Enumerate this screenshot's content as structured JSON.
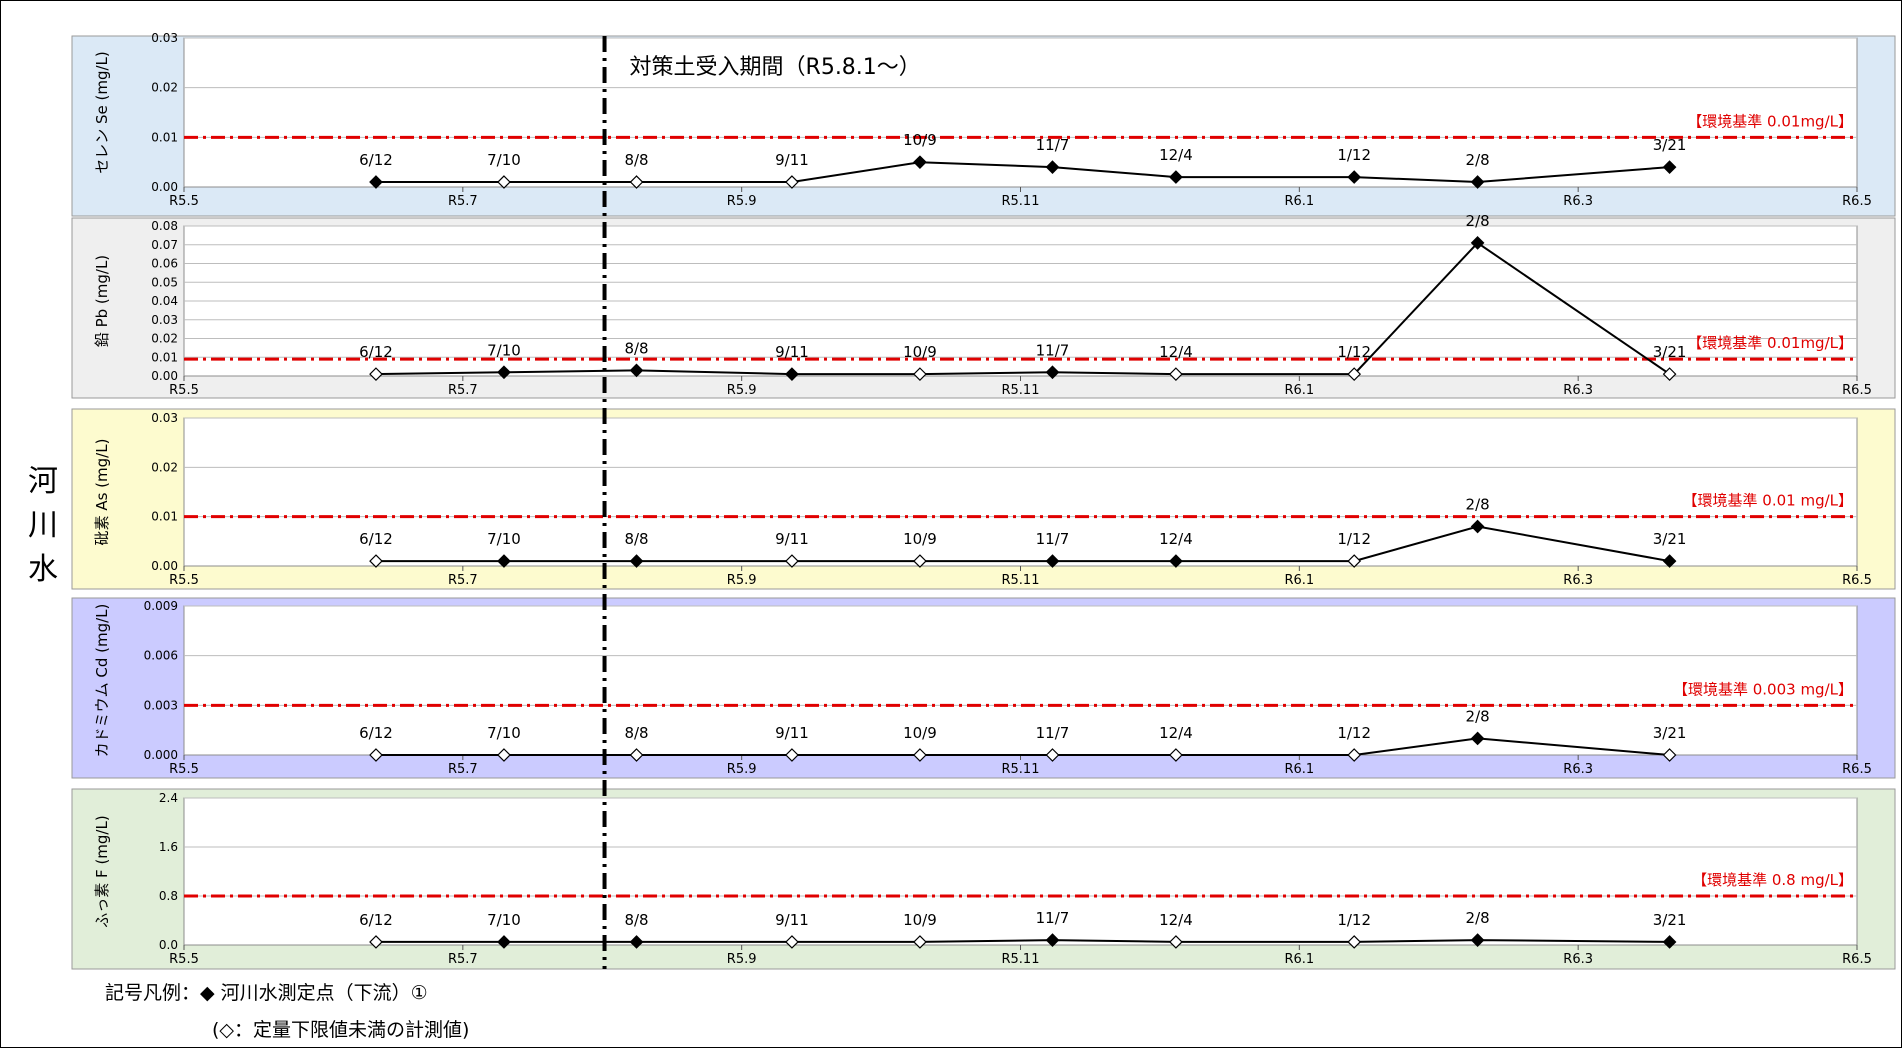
{
  "side_label": [
    "河",
    "川",
    "水"
  ],
  "period_label": "対策土受入期間（R5.8.1〜）",
  "legend": {
    "symbol": "◆",
    "text": "記号凡例：◆ 河川水測定点（下流）①",
    "note": "(◇：定量下限値未満の計測値)"
  },
  "colors": {
    "se_bg": "#dbe9f6",
    "pb_bg": "#efefef",
    "as_bg": "#fdfbcf",
    "cd_bg": "#cbcbff",
    "f_bg": "#e1eed9",
    "standard": "#e00000"
  },
  "chart_data": [
    {
      "type": "line",
      "name": "selenium",
      "ylabel": "セレン Se (mg/L)",
      "yticks": [
        "0.00",
        "0.01",
        "0.02",
        "0.03"
      ],
      "ylim": [
        0,
        0.03
      ],
      "xticks": [
        "R5.5",
        "R5.7",
        "R5.9",
        "R5.11",
        "R6.1",
        "R6.3",
        "R6.5"
      ],
      "standard": {
        "value": 0.01,
        "label": "【環境基準 0.01mg/L】"
      },
      "points": [
        {
          "date": "2023-06-12",
          "label": "6/12",
          "value": 0.001,
          "below_limit": false
        },
        {
          "date": "2023-07-10",
          "label": "7/10",
          "value": 0.001,
          "below_limit": true
        },
        {
          "date": "2023-08-08",
          "label": "8/8",
          "value": 0.001,
          "below_limit": true
        },
        {
          "date": "2023-09-11",
          "label": "9/11",
          "value": 0.001,
          "below_limit": true
        },
        {
          "date": "2023-10-09",
          "label": "10/9",
          "value": 0.005,
          "below_limit": false
        },
        {
          "date": "2023-11-07",
          "label": "11/7",
          "value": 0.004,
          "below_limit": false
        },
        {
          "date": "2023-12-04",
          "label": "12/4",
          "value": 0.002,
          "below_limit": false
        },
        {
          "date": "2024-01-12",
          "label": "1/12",
          "value": 0.002,
          "below_limit": false
        },
        {
          "date": "2024-02-08",
          "label": "2/8",
          "value": 0.001,
          "below_limit": false
        },
        {
          "date": "2024-03-21",
          "label": "3/21",
          "value": 0.004,
          "below_limit": false
        }
      ]
    },
    {
      "type": "line",
      "name": "lead",
      "ylabel": "鉛 Pb (mg/L)",
      "yticks": [
        "0.00",
        "0.01",
        "0.02",
        "0.03",
        "0.04",
        "0.05",
        "0.06",
        "0.07",
        "0.08"
      ],
      "ylim": [
        0,
        0.08
      ],
      "xticks": [
        "R5.5",
        "R5.7",
        "R5.9",
        "R5.11",
        "R6.1",
        "R6.3",
        "R6.5"
      ],
      "standard": {
        "value": 0.009,
        "label": "【環境基準 0.01mg/L】"
      },
      "points": [
        {
          "date": "2023-06-12",
          "label": "6/12",
          "value": 0.001,
          "below_limit": true
        },
        {
          "date": "2023-07-10",
          "label": "7/10",
          "value": 0.002,
          "below_limit": false
        },
        {
          "date": "2023-08-08",
          "label": "8/8",
          "value": 0.003,
          "below_limit": false
        },
        {
          "date": "2023-09-11",
          "label": "9/11",
          "value": 0.001,
          "below_limit": false
        },
        {
          "date": "2023-10-09",
          "label": "10/9",
          "value": 0.001,
          "below_limit": true
        },
        {
          "date": "2023-11-07",
          "label": "11/7",
          "value": 0.002,
          "below_limit": false
        },
        {
          "date": "2023-12-04",
          "label": "12/4",
          "value": 0.001,
          "below_limit": true
        },
        {
          "date": "2024-01-12",
          "label": "1/12",
          "value": 0.001,
          "below_limit": true
        },
        {
          "date": "2024-02-08",
          "label": "2/8",
          "value": 0.071,
          "below_limit": false
        },
        {
          "date": "2024-03-21",
          "label": "3/21",
          "value": 0.001,
          "below_limit": true
        }
      ]
    },
    {
      "type": "line",
      "name": "arsenic",
      "ylabel": "砒素 As (mg/L)",
      "yticks": [
        "0.00",
        "0.01",
        "0.02",
        "0.03"
      ],
      "ylim": [
        0,
        0.03
      ],
      "xticks": [
        "R5.5",
        "R5.7",
        "R5.9",
        "R5.11",
        "R6.1",
        "R6.3",
        "R6.5"
      ],
      "standard": {
        "value": 0.01,
        "label": "【環境基準 0.01 mg/L】"
      },
      "points": [
        {
          "date": "2023-06-12",
          "label": "6/12",
          "value": 0.001,
          "below_limit": true
        },
        {
          "date": "2023-07-10",
          "label": "7/10",
          "value": 0.001,
          "below_limit": false
        },
        {
          "date": "2023-08-08",
          "label": "8/8",
          "value": 0.001,
          "below_limit": false
        },
        {
          "date": "2023-09-11",
          "label": "9/11",
          "value": 0.001,
          "below_limit": true
        },
        {
          "date": "2023-10-09",
          "label": "10/9",
          "value": 0.001,
          "below_limit": true
        },
        {
          "date": "2023-11-07",
          "label": "11/7",
          "value": 0.001,
          "below_limit": false
        },
        {
          "date": "2023-12-04",
          "label": "12/4",
          "value": 0.001,
          "below_limit": false
        },
        {
          "date": "2024-01-12",
          "label": "1/12",
          "value": 0.001,
          "below_limit": true
        },
        {
          "date": "2024-02-08",
          "label": "2/8",
          "value": 0.008,
          "below_limit": false
        },
        {
          "date": "2024-03-21",
          "label": "3/21",
          "value": 0.001,
          "below_limit": false
        }
      ]
    },
    {
      "type": "line",
      "name": "cadmium",
      "ylabel": "カドミウム Cd (mg/L)",
      "yticks": [
        "0.000",
        "0.003",
        "0.006",
        "0.009"
      ],
      "ylim": [
        0,
        0.009
      ],
      "xticks": [
        "R5.5",
        "R5.7",
        "R5.9",
        "R5.11",
        "R6.1",
        "R6.3",
        "R6.5"
      ],
      "standard": {
        "value": 0.003,
        "label": "【環境基準 0.003 mg/L】"
      },
      "points": [
        {
          "date": "2023-06-12",
          "label": "6/12",
          "value": 0.0,
          "below_limit": true
        },
        {
          "date": "2023-07-10",
          "label": "7/10",
          "value": 0.0,
          "below_limit": true
        },
        {
          "date": "2023-08-08",
          "label": "8/8",
          "value": 0.0,
          "below_limit": true
        },
        {
          "date": "2023-09-11",
          "label": "9/11",
          "value": 0.0,
          "below_limit": true
        },
        {
          "date": "2023-10-09",
          "label": "10/9",
          "value": 0.0,
          "below_limit": true
        },
        {
          "date": "2023-11-07",
          "label": "11/7",
          "value": 0.0,
          "below_limit": true
        },
        {
          "date": "2023-12-04",
          "label": "12/4",
          "value": 0.0,
          "below_limit": true
        },
        {
          "date": "2024-01-12",
          "label": "1/12",
          "value": 0.0,
          "below_limit": true
        },
        {
          "date": "2024-02-08",
          "label": "2/8",
          "value": 0.001,
          "below_limit": false
        },
        {
          "date": "2024-03-21",
          "label": "3/21",
          "value": 0.0,
          "below_limit": true
        }
      ]
    },
    {
      "type": "line",
      "name": "fluorine",
      "ylabel": "ふっ素 F (mg/L)",
      "yticks": [
        "0.0",
        "0.8",
        "1.6",
        "2.4"
      ],
      "ylim": [
        0,
        2.4
      ],
      "xticks": [
        "R5.5",
        "R5.7",
        "R5.9",
        "R5.11",
        "R6.1",
        "R6.3",
        "R6.5"
      ],
      "standard": {
        "value": 0.8,
        "label": "【環境基準 0.8 mg/L】"
      },
      "points": [
        {
          "date": "2023-06-12",
          "label": "6/12",
          "value": 0.05,
          "below_limit": true
        },
        {
          "date": "2023-07-10",
          "label": "7/10",
          "value": 0.05,
          "below_limit": false
        },
        {
          "date": "2023-08-08",
          "label": "8/8",
          "value": 0.05,
          "below_limit": false
        },
        {
          "date": "2023-09-11",
          "label": "9/11",
          "value": 0.05,
          "below_limit": true
        },
        {
          "date": "2023-10-09",
          "label": "10/9",
          "value": 0.05,
          "below_limit": true
        },
        {
          "date": "2023-11-07",
          "label": "11/7",
          "value": 0.08,
          "below_limit": false
        },
        {
          "date": "2023-12-04",
          "label": "12/4",
          "value": 0.05,
          "below_limit": true
        },
        {
          "date": "2024-01-12",
          "label": "1/12",
          "value": 0.05,
          "below_limit": true
        },
        {
          "date": "2024-02-08",
          "label": "2/8",
          "value": 0.08,
          "below_limit": false
        },
        {
          "date": "2024-03-21",
          "label": "3/21",
          "value": 0.05,
          "below_limit": false
        }
      ]
    }
  ]
}
